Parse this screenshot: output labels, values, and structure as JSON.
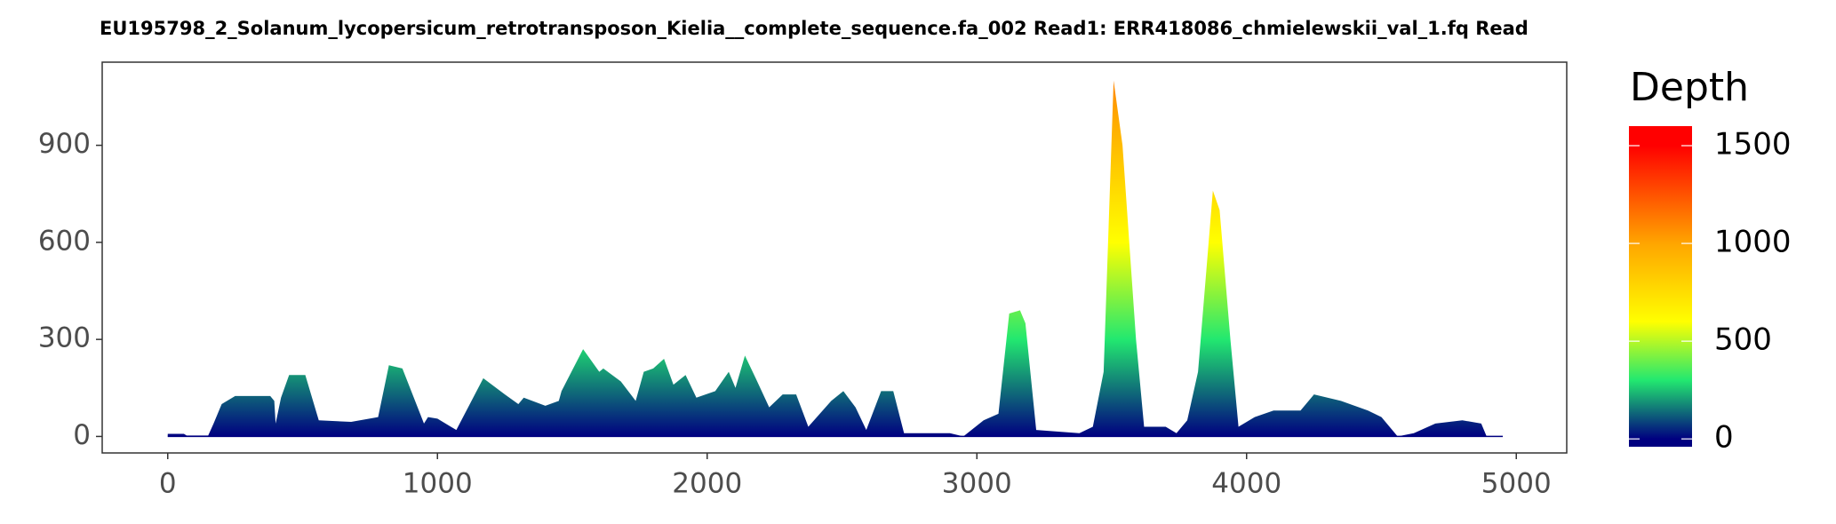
{
  "chart_data": {
    "type": "area",
    "title": "EU195798_2_Solanum_lycopersicum_retrotransposon_Kielia__complete_sequence.fa_002   Read1: ERR418086_chmielewskii_val_1.fq   Read",
    "x": [
      0,
      60,
      70,
      150,
      170,
      200,
      250,
      380,
      395,
      400,
      420,
      450,
      510,
      560,
      680,
      780,
      820,
      870,
      950,
      965,
      1000,
      1070,
      1170,
      1250,
      1300,
      1320,
      1400,
      1450,
      1460,
      1540,
      1600,
      1615,
      1680,
      1735,
      1765,
      1800,
      1840,
      1875,
      1920,
      1960,
      2030,
      2080,
      2105,
      2140,
      2180,
      2230,
      2280,
      2330,
      2375,
      2460,
      2505,
      2550,
      2590,
      2645,
      2690,
      2730,
      2900,
      2950,
      3025,
      3080,
      3120,
      3160,
      3180,
      3220,
      3380,
      3430,
      3470,
      3507,
      3540,
      3590,
      3620,
      3700,
      3740,
      3780,
      3820,
      3875,
      3900,
      3940,
      3970,
      4030,
      4100,
      4200,
      4250,
      4350,
      4450,
      4500,
      4560,
      4620,
      4700,
      4800,
      4870,
      4890,
      4950
    ],
    "values": [
      8,
      8,
      3,
      3,
      40,
      100,
      125,
      125,
      110,
      40,
      120,
      190,
      190,
      50,
      45,
      60,
      220,
      210,
      40,
      60,
      55,
      20,
      180,
      130,
      100,
      120,
      95,
      110,
      140,
      270,
      200,
      210,
      170,
      110,
      200,
      210,
      240,
      160,
      190,
      120,
      140,
      200,
      150,
      250,
      180,
      90,
      130,
      130,
      30,
      110,
      140,
      90,
      20,
      140,
      140,
      10,
      10,
      0,
      50,
      70,
      380,
      390,
      350,
      20,
      10,
      30,
      200,
      1100,
      900,
      300,
      30,
      30,
      10,
      50,
      200,
      760,
      700,
      300,
      30,
      60,
      80,
      80,
      130,
      110,
      80,
      60,
      0,
      10,
      40,
      50,
      40,
      0,
      0
    ],
    "xlim": [
      -243,
      5187
    ],
    "ylim": [
      -51,
      1157
    ],
    "xticks": [
      0,
      1000,
      2000,
      3000,
      4000,
      5000
    ],
    "yticks": [
      0,
      300,
      600,
      900
    ],
    "colorbar": {
      "title": "Depth",
      "lim": [
        -40,
        1600
      ],
      "ticks": [
        0,
        500,
        1000,
        1500
      ],
      "stops": [
        0,
        300,
        600,
        1000,
        1500
      ],
      "colors": [
        "#000080",
        "#22e870",
        "#ffff00",
        "#ffa500",
        "#ff0000"
      ]
    }
  }
}
